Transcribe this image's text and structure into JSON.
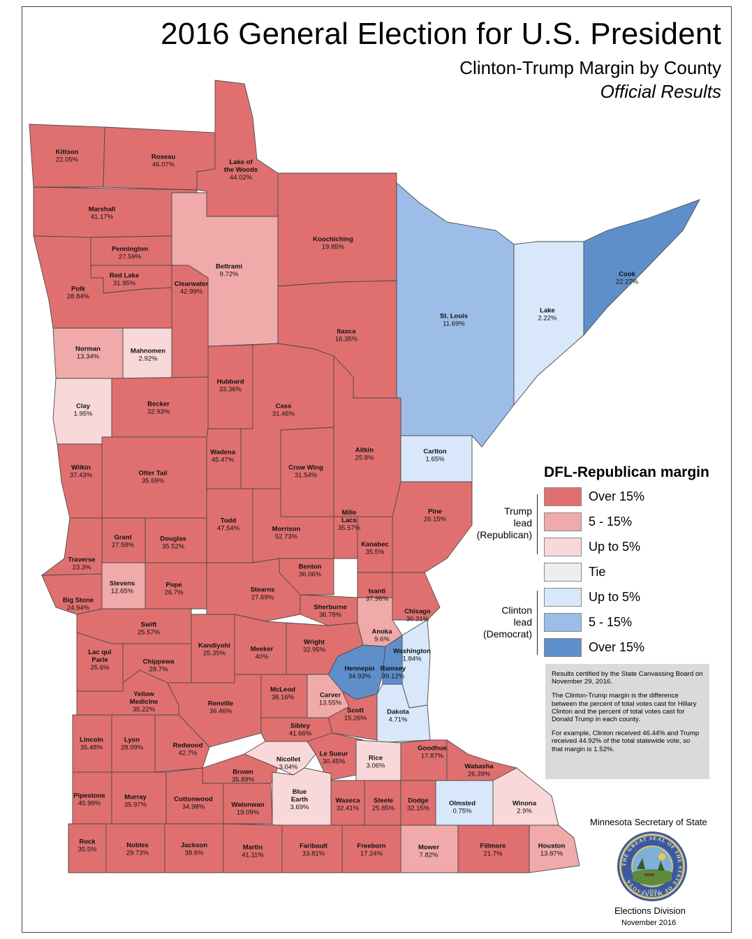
{
  "title": "2016 General Election for U.S. President",
  "subtitle": "Clinton-Trump Margin by County",
  "subtitle2": "Official Results",
  "colors": {
    "trump_over15": "#e07070",
    "trump_5_15": "#f0aaaa",
    "trump_upto5": "#f8d8d8",
    "tie": "#eeeeee",
    "clinton_upto5": "#d8e8fa",
    "clinton_5_15": "#9bbde8",
    "clinton_over15": "#5f8fcb"
  },
  "legend": {
    "title": "DFL-Republican margin",
    "items": [
      {
        "label": "Over 15%",
        "color": "#e07070"
      },
      {
        "label": "5 - 15%",
        "color": "#f0aaaa"
      },
      {
        "label": "Up to 5%",
        "color": "#f8d8d8"
      },
      {
        "label": "Tie",
        "color": "#eeeeee"
      },
      {
        "label": "Up to 5%",
        "color": "#d8e8fa"
      },
      {
        "label": "5 - 15%",
        "color": "#9bbde8"
      },
      {
        "label": "Over 15%",
        "color": "#5f8fcb"
      }
    ],
    "trump_group": [
      "Trump",
      "lead",
      "(Republican)"
    ],
    "clinton_group": [
      "Clinton",
      "lead",
      "(Democrat)"
    ]
  },
  "note": {
    "p1": "Results certified by the State Canvassing Board on November 29, 2016.",
    "p2": "The Clinton-Trump margin is the difference between the percent of total votes cast for Hillary Clinton and the percent of total votes cast for Donald Trump in each county.",
    "p3": "For example, Clinton received 46.44% and Trump received 44.92% of the total statewide vote, so that margin is 1.52%."
  },
  "footer": {
    "org": "Minnesota Secretary of State",
    "seal_text": "THE GREAT SEAL OF THE STATE OF MINNESOTA",
    "seal_year": "1858",
    "division": "Elections Division",
    "date": "November 2016"
  },
  "counties": [
    {
      "name": "Kittson",
      "margin": "22.05%",
      "winner": "Trump",
      "band": "Over 15%"
    },
    {
      "name": "Roseau",
      "margin": "46.07%",
      "winner": "Trump",
      "band": "Over 15%"
    },
    {
      "name": "Lake of the Woods",
      "margin": "44.02%",
      "winner": "Trump",
      "band": "Over 15%"
    },
    {
      "name": "Marshall",
      "margin": "41.17%",
      "winner": "Trump",
      "band": "Over 15%"
    },
    {
      "name": "Koochiching",
      "margin": "19.85%",
      "winner": "Trump",
      "band": "Over 15%"
    },
    {
      "name": "Pennington",
      "margin": "27.59%",
      "winner": "Trump",
      "band": "Over 15%"
    },
    {
      "name": "Red Lake",
      "margin": "31.95%",
      "winner": "Trump",
      "band": "Over 15%"
    },
    {
      "name": "Polk",
      "margin": "28.84%",
      "winner": "Trump",
      "band": "Over 15%"
    },
    {
      "name": "Beltrami",
      "margin": "9.72%",
      "winner": "Trump",
      "band": "5 - 15%"
    },
    {
      "name": "Clearwater",
      "margin": "42.99%",
      "winner": "Trump",
      "band": "Over 15%"
    },
    {
      "name": "St. Louis",
      "margin": "11.69%",
      "winner": "Clinton",
      "band": "5 - 15%"
    },
    {
      "name": "Lake",
      "margin": "2.22%",
      "winner": "Clinton",
      "band": "Up to 5%"
    },
    {
      "name": "Cook",
      "margin": "22.27%",
      "winner": "Clinton",
      "band": "Over 15%"
    },
    {
      "name": "Itasca",
      "margin": "16.35%",
      "winner": "Trump",
      "band": "Over 15%"
    },
    {
      "name": "Norman",
      "margin": "13.34%",
      "winner": "Trump",
      "band": "5 - 15%"
    },
    {
      "name": "Mahnomen",
      "margin": "2.92%",
      "winner": "Trump",
      "band": "Up to 5%"
    },
    {
      "name": "Hubbard",
      "margin": "33.36%",
      "winner": "Trump",
      "band": "Over 15%"
    },
    {
      "name": "Clay",
      "margin": "1.95%",
      "winner": "Trump",
      "band": "Up to 5%"
    },
    {
      "name": "Becker",
      "margin": "32.93%",
      "winner": "Trump",
      "band": "Over 15%"
    },
    {
      "name": "Cass",
      "margin": "31.46%",
      "winner": "Trump",
      "band": "Over 15%"
    },
    {
      "name": "Carlton",
      "margin": "1.65%",
      "winner": "Clinton",
      "band": "Up to 5%"
    },
    {
      "name": "Wadena",
      "margin": "45.47%",
      "winner": "Trump",
      "band": "Over 15%"
    },
    {
      "name": "Aitkin",
      "margin": "25.8%",
      "winner": "Trump",
      "band": "Over 15%"
    },
    {
      "name": "Crow Wing",
      "margin": "31.54%",
      "winner": "Trump",
      "band": "Over 15%"
    },
    {
      "name": "Wilkin",
      "margin": "37.43%",
      "winner": "Trump",
      "band": "Over 15%"
    },
    {
      "name": "Otter Tail",
      "margin": "35.69%",
      "winner": "Trump",
      "band": "Over 15%"
    },
    {
      "name": "Pine",
      "margin": "26.15%",
      "winner": "Trump",
      "band": "Over 15%"
    },
    {
      "name": "Todd",
      "margin": "47.54%",
      "winner": "Trump",
      "band": "Over 15%"
    },
    {
      "name": "Mille Lacs",
      "margin": "35.57%",
      "winner": "Trump",
      "band": "Over 15%"
    },
    {
      "name": "Grant",
      "margin": "27.58%",
      "winner": "Trump",
      "band": "Over 15%"
    },
    {
      "name": "Morrison",
      "margin": "52.73%",
      "winner": "Trump",
      "band": "Over 15%"
    },
    {
      "name": "Douglas",
      "margin": "35.52%",
      "winner": "Trump",
      "band": "Over 15%"
    },
    {
      "name": "Kanabec",
      "margin": "35.5%",
      "winner": "Trump",
      "band": "Over 15%"
    },
    {
      "name": "Traverse",
      "margin": "23.3%",
      "winner": "Trump",
      "band": "Over 15%"
    },
    {
      "name": "Benton",
      "margin": "36.06%",
      "winner": "Trump",
      "band": "Over 15%"
    },
    {
      "name": "Stevens",
      "margin": "12.65%",
      "winner": "Trump",
      "band": "5 - 15%"
    },
    {
      "name": "Pope",
      "margin": "26.7%",
      "winner": "Trump",
      "band": "Over 15%"
    },
    {
      "name": "Stearns",
      "margin": "27.69%",
      "winner": "Trump",
      "band": "Over 15%"
    },
    {
      "name": "Isanti",
      "margin": "37.96%",
      "winner": "Trump",
      "band": "Over 15%"
    },
    {
      "name": "Big Stone",
      "margin": "24.94%",
      "winner": "Trump",
      "band": "Over 15%"
    },
    {
      "name": "Sherburne",
      "margin": "36.78%",
      "winner": "Trump",
      "band": "Over 15%"
    },
    {
      "name": "Chisago",
      "margin": "30.31%",
      "winner": "Trump",
      "band": "Over 15%"
    },
    {
      "name": "Swift",
      "margin": "25.57%",
      "winner": "Trump",
      "band": "Over 15%"
    },
    {
      "name": "Anoka",
      "margin": "9.6%",
      "winner": "Trump",
      "band": "5 - 15%"
    },
    {
      "name": "Kandiyohi",
      "margin": "25.35%",
      "winner": "Trump",
      "band": "Over 15%"
    },
    {
      "name": "Meeker",
      "margin": "40%",
      "winner": "Trump",
      "band": "Over 15%"
    },
    {
      "name": "Wright",
      "margin": "32.95%",
      "winner": "Trump",
      "band": "Over 15%"
    },
    {
      "name": "Washington",
      "margin": "1.84%",
      "winner": "Clinton",
      "band": "Up to 5%"
    },
    {
      "name": "Lac qui Parle",
      "margin": "25.6%",
      "winner": "Trump",
      "band": "Over 15%"
    },
    {
      "name": "Chippewa",
      "margin": "28.7%",
      "winner": "Trump",
      "band": "Over 15%"
    },
    {
      "name": "Hennepin",
      "margin": "34.93%",
      "winner": "Clinton",
      "band": "Over 15%"
    },
    {
      "name": "Ramsey",
      "margin": "39.12%",
      "winner": "Clinton",
      "band": "Over 15%"
    },
    {
      "name": "Yellow Medicine",
      "margin": "35.22%",
      "winner": "Trump",
      "band": "Over 15%"
    },
    {
      "name": "Renville",
      "margin": "36.46%",
      "winner": "Trump",
      "band": "Over 15%"
    },
    {
      "name": "McLeod",
      "margin": "38.16%",
      "winner": "Trump",
      "band": "Over 15%"
    },
    {
      "name": "Carver",
      "margin": "13.55%",
      "winner": "Trump",
      "band": "5 - 15%"
    },
    {
      "name": "Scott",
      "margin": "15.26%",
      "winner": "Trump",
      "band": "Over 15%"
    },
    {
      "name": "Dakota",
      "margin": "4.71%",
      "winner": "Clinton",
      "band": "Up to 5%"
    },
    {
      "name": "Sibley",
      "margin": "41.66%",
      "winner": "Trump",
      "band": "Over 15%"
    },
    {
      "name": "Lincoln",
      "margin": "35.48%",
      "winner": "Trump",
      "band": "Over 15%"
    },
    {
      "name": "Lyon",
      "margin": "28.09%",
      "winner": "Trump",
      "band": "Over 15%"
    },
    {
      "name": "Redwood",
      "margin": "42.7%",
      "winner": "Trump",
      "band": "Over 15%"
    },
    {
      "name": "Nicollet",
      "margin": "3.04%",
      "winner": "Trump",
      "band": "Up to 5%"
    },
    {
      "name": "Le Sueur",
      "margin": "30.45%",
      "winner": "Trump",
      "band": "Over 15%"
    },
    {
      "name": "Rice",
      "margin": "3.06%",
      "winner": "Trump",
      "band": "Up to 5%"
    },
    {
      "name": "Goodhue",
      "margin": "17.87%",
      "winner": "Trump",
      "band": "Over 15%"
    },
    {
      "name": "Wabasha",
      "margin": "26.39%",
      "winner": "Trump",
      "band": "Over 15%"
    },
    {
      "name": "Brown",
      "margin": "35.89%",
      "winner": "Trump",
      "band": "Over 15%"
    },
    {
      "name": "Pipestone",
      "margin": "45.99%",
      "winner": "Trump",
      "band": "Over 15%"
    },
    {
      "name": "Murray",
      "margin": "35.97%",
      "winner": "Trump",
      "band": "Over 15%"
    },
    {
      "name": "Cottonwood",
      "margin": "34.98%",
      "winner": "Trump",
      "band": "Over 15%"
    },
    {
      "name": "Watonwan",
      "margin": "19.09%",
      "winner": "Trump",
      "band": "Over 15%"
    },
    {
      "name": "Blue Earth",
      "margin": "3.69%",
      "winner": "Trump",
      "band": "Up to 5%"
    },
    {
      "name": "Waseca",
      "margin": "32.41%",
      "winner": "Trump",
      "band": "Over 15%"
    },
    {
      "name": "Steele",
      "margin": "25.85%",
      "winner": "Trump",
      "band": "Over 15%"
    },
    {
      "name": "Dodge",
      "margin": "32.15%",
      "winner": "Trump",
      "band": "Over 15%"
    },
    {
      "name": "Olmsted",
      "margin": "0.75%",
      "winner": "Clinton",
      "band": "Up to 5%"
    },
    {
      "name": "Winona",
      "margin": "2.9%",
      "winner": "Trump",
      "band": "Up to 5%"
    },
    {
      "name": "Rock",
      "margin": "35.5%",
      "winner": "Trump",
      "band": "Over 15%"
    },
    {
      "name": "Nobles",
      "margin": "29.73%",
      "winner": "Trump",
      "band": "Over 15%"
    },
    {
      "name": "Jackson",
      "margin": "38.6%",
      "winner": "Trump",
      "band": "Over 15%"
    },
    {
      "name": "Martin",
      "margin": "41.11%",
      "winner": "Trump",
      "band": "Over 15%"
    },
    {
      "name": "Faribault",
      "margin": "33.81%",
      "winner": "Trump",
      "band": "Over 15%"
    },
    {
      "name": "Freeborn",
      "margin": "17.24%",
      "winner": "Trump",
      "band": "Over 15%"
    },
    {
      "name": "Mower",
      "margin": "7.82%",
      "winner": "Trump",
      "band": "5 - 15%"
    },
    {
      "name": "Fillmore",
      "margin": "21.7%",
      "winner": "Trump",
      "band": "Over 15%"
    },
    {
      "name": "Houston",
      "margin": "13.87%",
      "winner": "Trump",
      "band": "5 - 15%"
    }
  ]
}
